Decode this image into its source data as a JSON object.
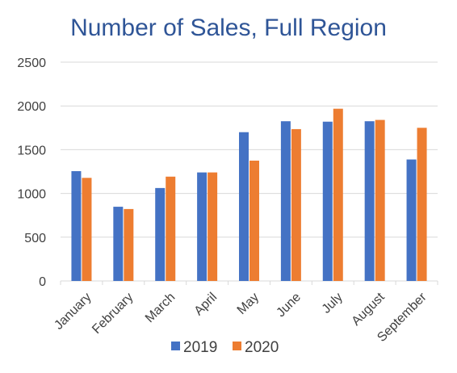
{
  "chart_data": {
    "type": "bar",
    "title": "Number of Sales, Full Region",
    "categories": [
      "January",
      "February",
      "March",
      "April",
      "May",
      "June",
      "July",
      "August",
      "September"
    ],
    "series": [
      {
        "name": "2019",
        "color": "#4472C4",
        "values": [
          1255,
          848,
          1062,
          1240,
          1700,
          1825,
          1820,
          1825,
          1388
        ]
      },
      {
        "name": "2020",
        "color": "#ED7D31",
        "values": [
          1178,
          822,
          1192,
          1240,
          1375,
          1735,
          1968,
          1840,
          1750
        ]
      }
    ],
    "xlabel": "",
    "ylabel": "",
    "ylim": [
      0,
      2500
    ],
    "yticks": [
      0,
      500,
      1000,
      1500,
      2000,
      2500
    ],
    "grid": true,
    "legend": "bottom-center"
  }
}
